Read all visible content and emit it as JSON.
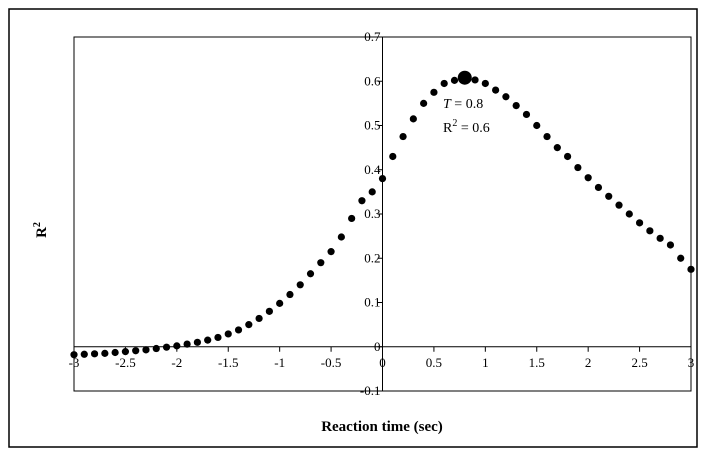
{
  "chart_data": {
    "type": "scatter",
    "xlabel": "Reaction time (sec)",
    "ylabel": "R",
    "ylabel_superscript": "2",
    "xlim": [
      -3,
      3
    ],
    "ylim": [
      -0.1,
      0.7
    ],
    "x_ticks": [
      "-3",
      "-2.5",
      "-2",
      "-1.5",
      "-1",
      "-0.5",
      "0",
      "0.5",
      "1",
      "1.5",
      "2",
      "2.5",
      "3"
    ],
    "y_ticks": [
      "-0.1",
      "0",
      "0.1",
      "0.2",
      "0.3",
      "0.4",
      "0.5",
      "0.6",
      "0.7"
    ],
    "x_tick_values": [
      -3,
      -2.5,
      -2,
      -1.5,
      -1,
      -0.5,
      0,
      0.5,
      1,
      1.5,
      2,
      2.5,
      3
    ],
    "y_tick_values": [
      -0.1,
      0,
      0.1,
      0.2,
      0.3,
      0.4,
      0.5,
      0.6,
      0.7
    ],
    "grid": false,
    "legend": "none",
    "series": [
      {
        "x": [
          -3.0,
          -2.9,
          -2.8,
          -2.7,
          -2.6,
          -2.5,
          -2.4,
          -2.3,
          -2.2,
          -2.1,
          -2.0,
          -1.9,
          -1.8,
          -1.7,
          -1.6,
          -1.5,
          -1.4,
          -1.3,
          -1.2,
          -1.1,
          -1.0,
          -0.9,
          -0.8,
          -0.7,
          -0.6,
          -0.5,
          -0.4,
          -0.3,
          -0.2,
          -0.1,
          0.0,
          0.1,
          0.2,
          0.3,
          0.4,
          0.5,
          0.6,
          0.7,
          0.8,
          0.9,
          1.0,
          1.1,
          1.2,
          1.3,
          1.4,
          1.5,
          1.6,
          1.7,
          1.8,
          1.9,
          2.0,
          2.1,
          2.2,
          2.3,
          2.4,
          2.5,
          2.6,
          2.7,
          2.8,
          2.9,
          3.0
        ],
        "y": [
          -0.018,
          -0.017,
          -0.016,
          -0.015,
          -0.013,
          -0.011,
          -0.009,
          -0.007,
          -0.004,
          -0.001,
          0.002,
          0.006,
          0.01,
          0.015,
          0.021,
          0.029,
          0.038,
          0.05,
          0.064,
          0.08,
          0.098,
          0.118,
          0.14,
          0.165,
          0.19,
          0.215,
          0.248,
          0.29,
          0.33,
          0.35,
          0.38,
          0.43,
          0.475,
          0.515,
          0.55,
          0.575,
          0.595,
          0.602,
          0.608,
          0.603,
          0.595,
          0.58,
          0.565,
          0.545,
          0.525,
          0.5,
          0.475,
          0.45,
          0.43,
          0.405,
          0.382,
          0.36,
          0.34,
          0.32,
          0.3,
          0.28,
          0.262,
          0.245,
          0.23,
          0.2,
          0.175
        ]
      }
    ],
    "highlight": {
      "x": 0.8,
      "y": 0.608
    },
    "annotation": {
      "line1_var": "T",
      "line1_rest": " = 0.8",
      "line2_var": "R",
      "line2_sup": "2",
      "line2_rest": " = 0.6"
    }
  }
}
